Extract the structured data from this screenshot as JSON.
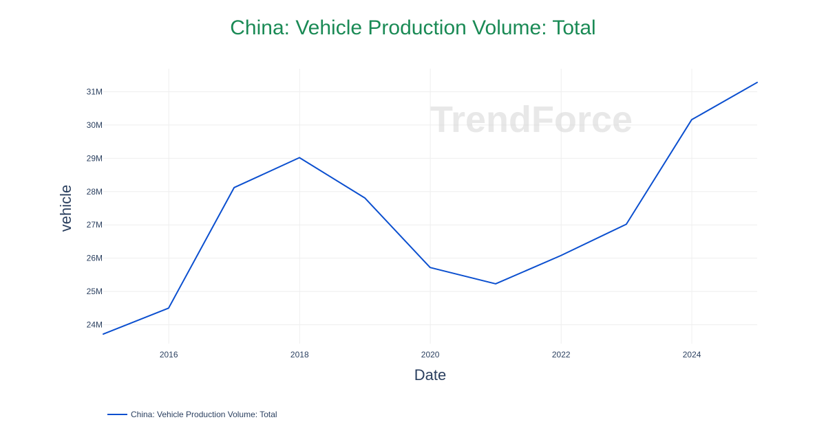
{
  "watermark": {
    "text": "TrendForce"
  },
  "colors": {
    "title": "#1a8a55",
    "series": "#0b4fcf",
    "text": "#2a3f5f",
    "grid": "#eeeeee"
  },
  "chart_data": {
    "type": "line",
    "title": "China: Vehicle Production Volume: Total",
    "xlabel": "Date",
    "ylabel": "vehicle",
    "grid": true,
    "legend_position": "bottom-left",
    "x_ticks": [
      "2016",
      "2018",
      "2020",
      "2022",
      "2024"
    ],
    "y_ticks": [
      "24M",
      "25M",
      "26M",
      "27M",
      "28M",
      "29M",
      "30M",
      "31M"
    ],
    "xlim": [
      "2014-12-31",
      "2024-12-31"
    ],
    "ylim": [
      23.7,
      31.28
    ],
    "series": [
      {
        "name": "China: Vehicle Production Volume: Total",
        "color": "#0b4fcf",
        "x": [
          "2014-12-31",
          "2015-12-31",
          "2016-12-31",
          "2017-12-31",
          "2018-12-31",
          "2019-12-31",
          "2020-12-31",
          "2021-12-31",
          "2022-12-31",
          "2023-12-31",
          "2024-12-31"
        ],
        "values": [
          23.72,
          24.5,
          28.12,
          29.02,
          27.81,
          25.72,
          25.23,
          26.08,
          27.02,
          30.16,
          31.28
        ]
      }
    ]
  }
}
